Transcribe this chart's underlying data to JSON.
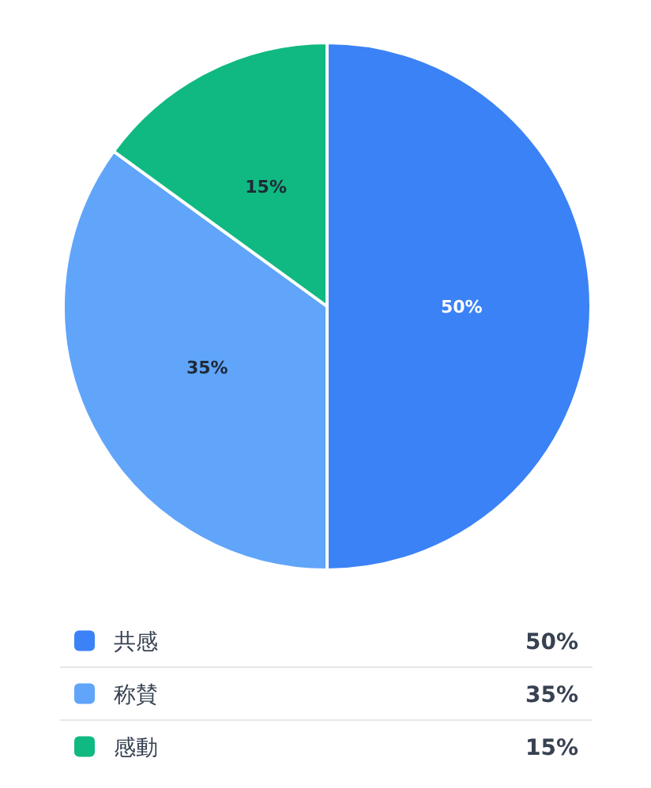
{
  "chart_data": {
    "type": "pie",
    "categories": [
      "共感",
      "称賛",
      "感動"
    ],
    "values": [
      50,
      35,
      15
    ],
    "colors": [
      "#3b82f6",
      "#60a5fa",
      "#10b981"
    ],
    "value_labels": [
      "50%",
      "35%",
      "15%"
    ],
    "legend": "bottom"
  }
}
